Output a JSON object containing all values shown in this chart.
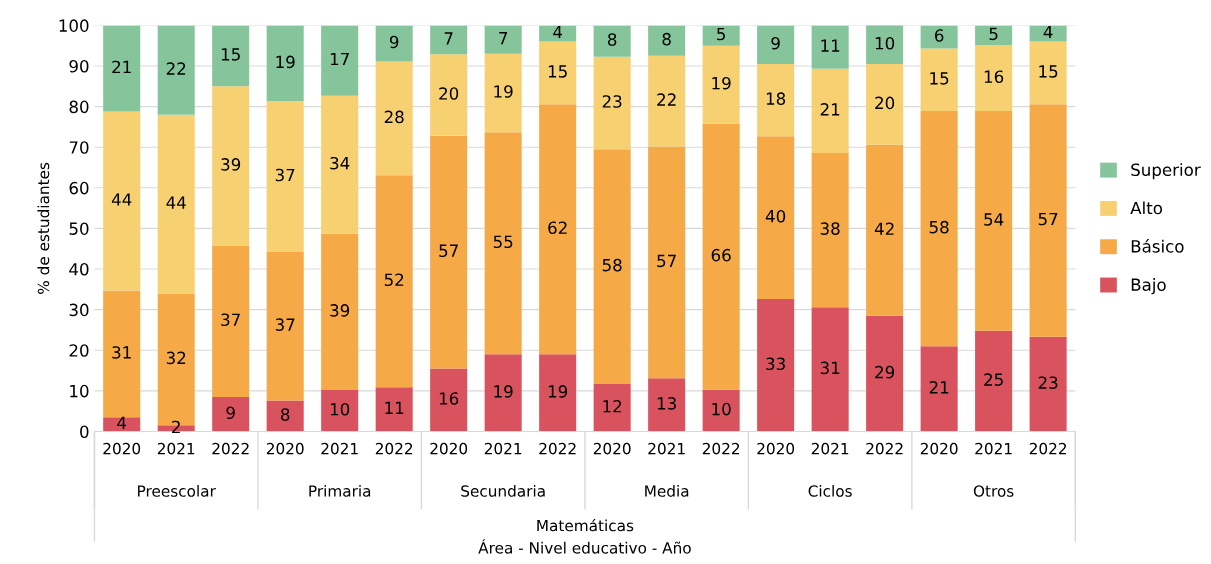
{
  "chart_data": {
    "type": "bar",
    "stacked": true,
    "ylabel": "% de estudiantes",
    "categories": [
      "2020",
      "2021",
      "2022",
      "2020",
      "2021",
      "2022",
      "2020",
      "2021",
      "2022",
      "2020",
      "2021",
      "2022",
      "2020",
      "2021",
      "2022",
      "2020",
      "2021",
      "2022"
    ],
    "annotations": [
      "Preescolar",
      "Primaria",
      "Secundaria",
      "Media",
      "Ciclos",
      "Otros",
      "Matemáticas",
      "Área - Nivel educativo - Año"
    ],
    "series": [
      {
        "name": "Bajo",
        "color": "#d9535f",
        "values": [
          3.5,
          1.5,
          8.5,
          7.6,
          10.2,
          10.9,
          15.5,
          19.0,
          19.0,
          11.7,
          13.1,
          10.3,
          32.6,
          30.6,
          28.5,
          21.0,
          24.8,
          23.3
        ],
        "value_labels": [
          "4",
          "2",
          "9",
          "8",
          "10",
          "11",
          "16",
          "19",
          "19",
          "12",
          "13",
          "10",
          "33",
          "31",
          "29",
          "21",
          "25",
          "23"
        ]
      },
      {
        "name": "Básico",
        "color": "#f5a947",
        "values": [
          31.2,
          32.5,
          37.3,
          36.7,
          38.5,
          52.2,
          57.3,
          54.7,
          61.6,
          57.8,
          57.1,
          65.5,
          40.1,
          38.0,
          42.1,
          57.9,
          54.1,
          57.3
        ],
        "value_labels": [
          "31",
          "32",
          "37",
          "37",
          "39",
          "52",
          "57",
          "55",
          "62",
          "58",
          "57",
          "66",
          "40",
          "38",
          "42",
          "58",
          "54",
          "57"
        ]
      },
      {
        "name": "Alto",
        "color": "#f7d072",
        "values": [
          44.1,
          44.0,
          39.2,
          37.0,
          34.0,
          28.0,
          20.1,
          19.3,
          15.4,
          22.8,
          22.3,
          19.2,
          17.8,
          20.7,
          19.9,
          15.4,
          16.2,
          15.4
        ],
        "value_labels": [
          "44",
          "44",
          "39",
          "37",
          "34",
          "28",
          "20",
          "19",
          "15",
          "23",
          "22",
          "19",
          "18",
          "21",
          "20",
          "15",
          "16",
          "15"
        ]
      },
      {
        "name": "Superior",
        "color": "#86c59b",
        "values": [
          21.2,
          22.0,
          15.0,
          18.7,
          17.3,
          8.9,
          7.1,
          7.0,
          4.0,
          7.7,
          7.5,
          5.0,
          9.5,
          10.7,
          9.6,
          5.7,
          4.9,
          4.0
        ],
        "value_labels": [
          "21",
          "22",
          "15",
          "19",
          "17",
          "9",
          "7",
          "7",
          "4",
          "8",
          "8",
          "5",
          "9",
          "11",
          "10",
          "6",
          "5",
          "4"
        ]
      }
    ],
    "ylim": [
      0,
      100
    ],
    "yticks": [
      0,
      10,
      20,
      30,
      40,
      50,
      60,
      70,
      80,
      90,
      100
    ],
    "grid": "y",
    "legend": "right"
  }
}
